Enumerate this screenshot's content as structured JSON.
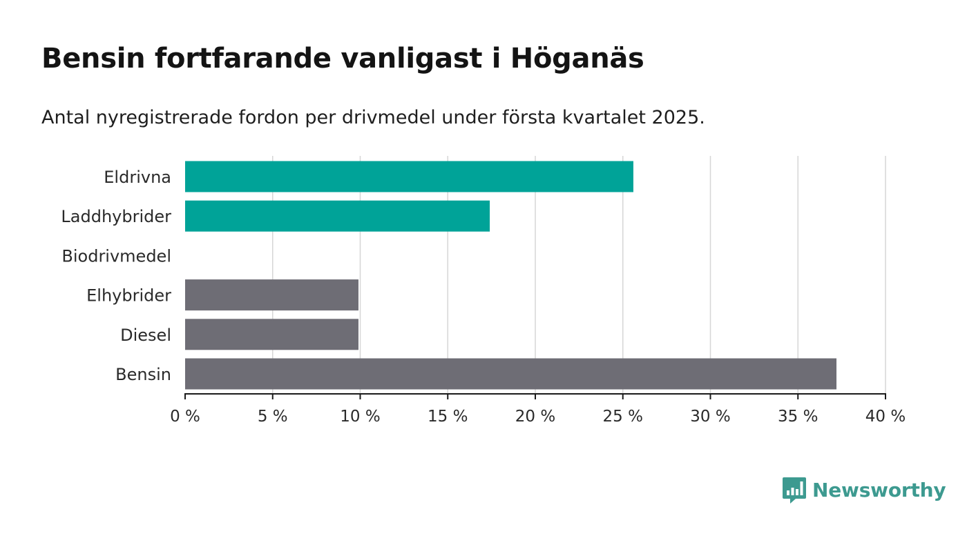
{
  "title": "Bensin fortfarande vanligast i Höganäs",
  "subtitle": "Antal nyregistrerade fordon per drivmedel under första kvartalet 2025.",
  "colors": {
    "accent": "#00a398",
    "neutral": "#6e6d75",
    "grid": "#d6d6d6",
    "axis": "#1a1a1a",
    "brand": "#3d9a90"
  },
  "chart_data": {
    "type": "bar",
    "orientation": "horizontal",
    "categories": [
      "Eldrivna",
      "Laddhybrider",
      "Biodrivmedel",
      "Elhybrider",
      "Diesel",
      "Bensin"
    ],
    "values": [
      25.6,
      17.4,
      0,
      9.9,
      9.9,
      37.2
    ],
    "highlight": [
      true,
      true,
      false,
      false,
      false,
      false
    ],
    "xlim": [
      0,
      40
    ],
    "ticks": [
      0,
      5,
      10,
      15,
      20,
      25,
      30,
      35,
      40
    ],
    "tick_labels": [
      "0 %",
      "5 %",
      "10 %",
      "15 %",
      "20 %",
      "25 %",
      "30 %",
      "35 %",
      "40 %"
    ],
    "grid": true,
    "xlabel": "",
    "ylabel": ""
  },
  "brand": {
    "name": "Newsworthy",
    "icon": "bar-chart-speech-bubble-icon"
  }
}
